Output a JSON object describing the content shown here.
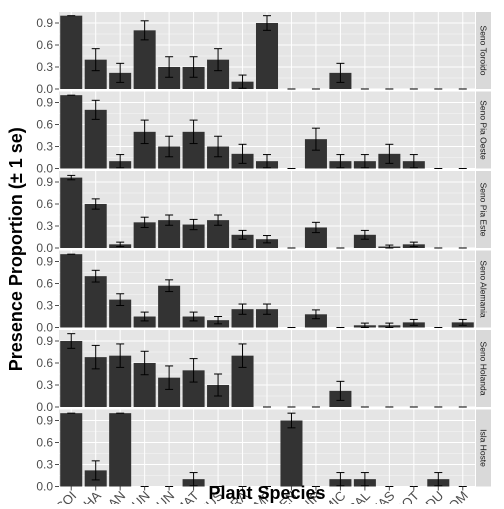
{
  "chart_data": {
    "type": "bar",
    "xlabel": "Plant Species",
    "ylabel": "Presence Proportion (± 1 se)",
    "ylim": [
      0,
      1.05
    ],
    "yticks": [
      0.0,
      0.3,
      0.6,
      0.9
    ],
    "ytick_labels": [
      "0.0",
      "0.3",
      "0.6",
      "0.9"
    ],
    "grid": true,
    "legend": "none",
    "colors": {
      "panel_bg": "#e5e5e5",
      "grid": "#ffffff",
      "bar": "#333333",
      "strip_bg": "#d9d9d9",
      "text": "#000000",
      "tick_text": "#4d4d4d"
    },
    "categories": [
      "COI",
      "CHA",
      "CAN",
      "JUN",
      "GUN",
      "MAT",
      "MUS",
      "GRA",
      "EMP",
      "LEN",
      "NIR",
      "MIC",
      "CAL",
      "ZAS",
      "NOT",
      "LDU",
      "COM"
    ],
    "facets": [
      {
        "name": "Seno Toroido",
        "values": [
          1.0,
          0.4,
          0.22,
          0.8,
          0.3,
          0.3,
          0.4,
          0.1,
          0.9,
          0,
          0,
          0.22,
          0,
          0,
          0,
          0,
          0
        ],
        "errors": [
          0.0,
          0.15,
          0.13,
          0.13,
          0.14,
          0.14,
          0.15,
          0.09,
          0.1,
          0,
          0,
          0.13,
          0,
          0,
          0,
          0,
          0
        ]
      },
      {
        "name": "Seno Pia Oeste",
        "values": [
          1.0,
          0.8,
          0.1,
          0.5,
          0.3,
          0.5,
          0.3,
          0.2,
          0.1,
          0,
          0.4,
          0.1,
          0.1,
          0.2,
          0.1,
          0,
          0
        ],
        "errors": [
          0.0,
          0.13,
          0.09,
          0.16,
          0.14,
          0.16,
          0.14,
          0.13,
          0.09,
          0,
          0.15,
          0.09,
          0.09,
          0.13,
          0.09,
          0,
          0
        ]
      },
      {
        "name": "Seno Pia Este",
        "values": [
          0.96,
          0.6,
          0.05,
          0.35,
          0.38,
          0.32,
          0.38,
          0.18,
          0.12,
          0,
          0.28,
          0,
          0.18,
          0.02,
          0.05,
          0,
          0
        ],
        "errors": [
          0.03,
          0.07,
          0.03,
          0.07,
          0.07,
          0.07,
          0.07,
          0.06,
          0.05,
          0,
          0.07,
          0,
          0.06,
          0.02,
          0.03,
          0,
          0
        ]
      },
      {
        "name": "Seno Alemania",
        "values": [
          1.0,
          0.7,
          0.38,
          0.15,
          0.57,
          0.15,
          0.1,
          0.25,
          0.25,
          0,
          0.18,
          0,
          0.03,
          0.03,
          0.07,
          0,
          0.07
        ],
        "errors": [
          0.0,
          0.08,
          0.08,
          0.06,
          0.08,
          0.06,
          0.05,
          0.07,
          0.07,
          0,
          0.06,
          0,
          0.03,
          0.03,
          0.04,
          0,
          0.04
        ]
      },
      {
        "name": "Seno Holanda",
        "values": [
          0.9,
          0.68,
          0.7,
          0.6,
          0.4,
          0.5,
          0.3,
          0.7,
          0,
          0,
          0,
          0.22,
          0,
          0,
          0,
          0,
          0
        ],
        "errors": [
          0.1,
          0.16,
          0.16,
          0.16,
          0.16,
          0.16,
          0.15,
          0.16,
          0,
          0,
          0,
          0.13,
          0,
          0,
          0,
          0,
          0
        ]
      },
      {
        "name": "Isla Hoste",
        "values": [
          1.0,
          0.22,
          1.0,
          0,
          0,
          0.1,
          0,
          0,
          0,
          0.9,
          0,
          0.1,
          0.1,
          0,
          0,
          0.1,
          0
        ],
        "errors": [
          0.0,
          0.13,
          0.0,
          0,
          0,
          0.09,
          0,
          0,
          0,
          0.1,
          0,
          0.09,
          0.09,
          0,
          0,
          0.09,
          0
        ]
      }
    ]
  }
}
